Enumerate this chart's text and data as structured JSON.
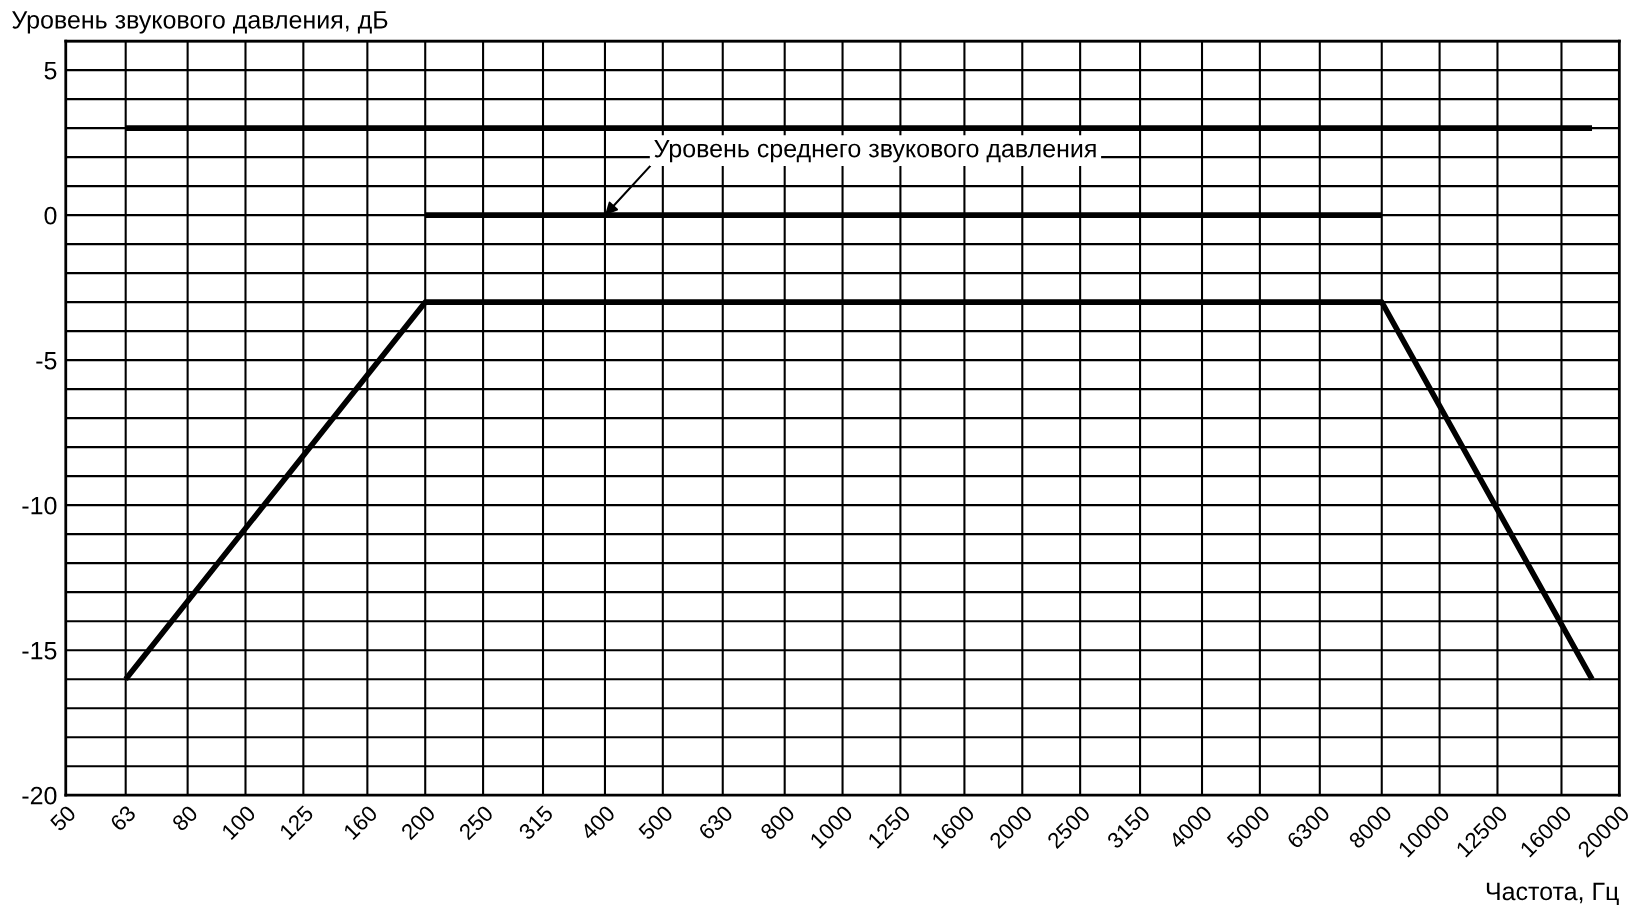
{
  "chart_data": {
    "type": "line",
    "xlabel": "Частота, Гц",
    "ylabel": "Уровень звукового давления, дБ",
    "log": "x",
    "xlim": [
      50,
      20000
    ],
    "xticks": [
      50,
      63,
      80,
      100,
      125,
      160,
      200,
      250,
      315,
      400,
      500,
      630,
      800,
      1000,
      1250,
      1600,
      2000,
      2500,
      3150,
      4000,
      5000,
      6300,
      8000,
      10000,
      12500,
      16000,
      20000
    ],
    "ylim": [
      -20,
      6
    ],
    "yticks": [
      {
        "value": -20,
        "label": "-20"
      },
      {
        "value": -19,
        "label": null
      },
      {
        "value": -18,
        "label": null
      },
      {
        "value": -17,
        "label": null
      },
      {
        "value": -16,
        "label": null
      },
      {
        "value": -15,
        "label": "-15"
      },
      {
        "value": -14,
        "label": null
      },
      {
        "value": -13,
        "label": null
      },
      {
        "value": -12,
        "label": null
      },
      {
        "value": -11,
        "label": null
      },
      {
        "value": -10,
        "label": "-10"
      },
      {
        "value": -9,
        "label": null
      },
      {
        "value": -8,
        "label": null
      },
      {
        "value": -7,
        "label": null
      },
      {
        "value": -6,
        "label": null
      },
      {
        "value": -5,
        "label": "-5"
      },
      {
        "value": -4,
        "label": null
      },
      {
        "value": -3,
        "label": null
      },
      {
        "value": -2,
        "label": null
      },
      {
        "value": -1,
        "label": null
      },
      {
        "value": 0,
        "label": "0"
      },
      {
        "value": 1,
        "label": null
      },
      {
        "value": 2,
        "label": null
      },
      {
        "value": 3,
        "label": null
      },
      {
        "value": 4,
        "label": null
      },
      {
        "value": 5,
        "label": "5"
      },
      {
        "value": 6,
        "label": null
      }
    ],
    "grid": true,
    "line_style": "solid",
    "marker": "none",
    "series": [
      {
        "color": "#000000",
        "x": [
          63,
          18000
        ],
        "values": [
          3,
          3
        ]
      },
      {
        "color": "#000000",
        "x": [
          200,
          8000
        ],
        "values": [
          0,
          0
        ]
      },
      {
        "color": "#000000",
        "x": [
          63,
          200,
          8000,
          18000
        ],
        "values": [
          -16,
          -3,
          -3,
          -16
        ]
      }
    ],
    "annotations": [
      {
        "text": "Уровень среднего звукового давления",
        "x": 400,
        "y": 0
      }
    ]
  }
}
